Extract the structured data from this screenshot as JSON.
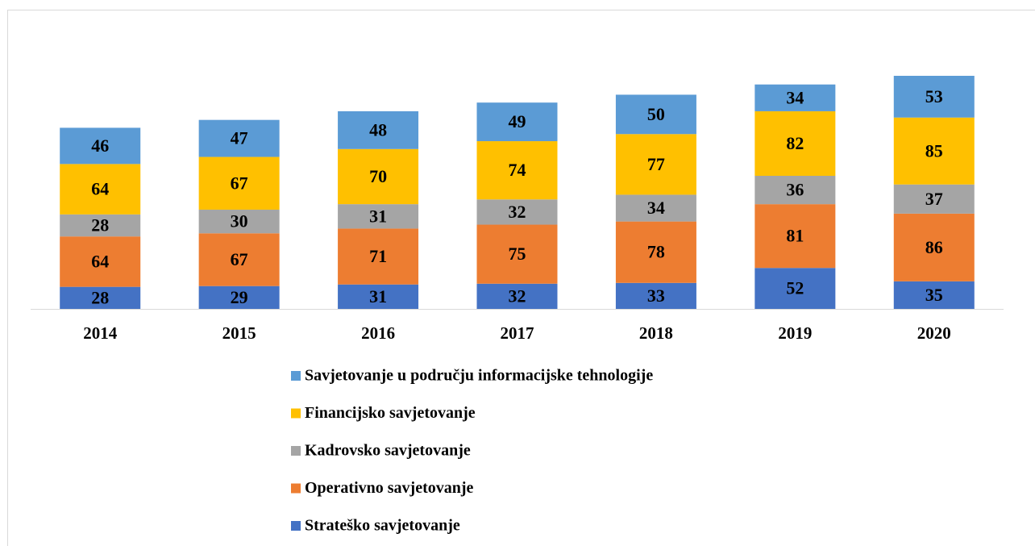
{
  "chart_data": {
    "type": "stacked_bar",
    "categories": [
      "2014",
      "2015",
      "2016",
      "2017",
      "2018",
      "2019",
      "2020"
    ],
    "series": [
      {
        "name": "Strateško savjetovanje",
        "color": "#4472c4",
        "values": [
          28,
          29,
          31,
          32,
          33,
          52,
          35
        ]
      },
      {
        "name": "Operativno savjetovanje",
        "color": "#ed7d31",
        "values": [
          64,
          67,
          71,
          75,
          78,
          81,
          86
        ]
      },
      {
        "name": "Kadrovsko savjetovanje",
        "color": "#a5a5a5",
        "values": [
          28,
          30,
          31,
          32,
          34,
          36,
          37
        ]
      },
      {
        "name": "Financijsko savjetovanje",
        "color": "#ffc000",
        "values": [
          64,
          67,
          70,
          74,
          77,
          82,
          85
        ]
      },
      {
        "name": "Savjetovanje u području informacijske tehnologije",
        "color": "#5b9bd5",
        "values": [
          46,
          47,
          48,
          49,
          50,
          34,
          53
        ]
      }
    ],
    "legend": "bottom"
  }
}
